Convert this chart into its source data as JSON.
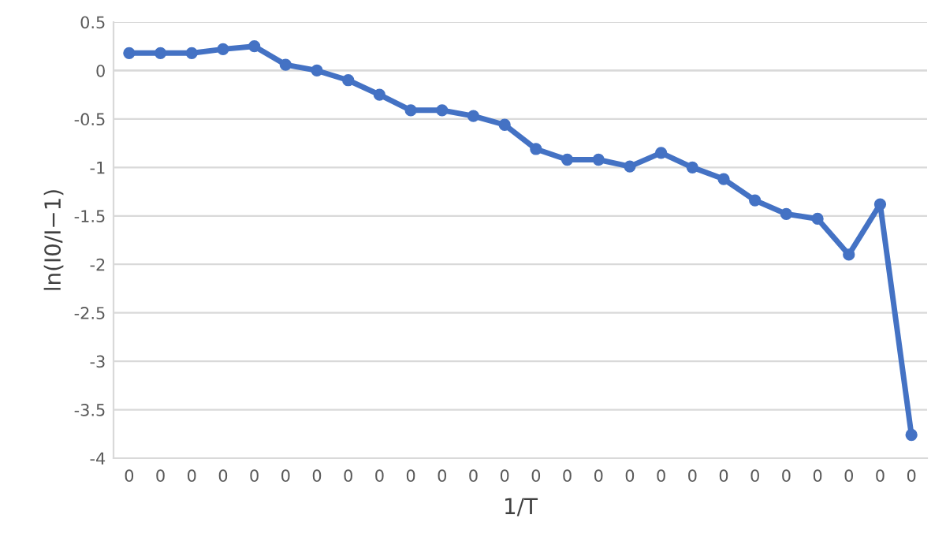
{
  "chart_data": {
    "type": "line",
    "xlabel": "1/T",
    "ylabel": "ln(I0/I−1)",
    "categories": [
      "0",
      "0",
      "0",
      "0",
      "0",
      "0",
      "0",
      "0",
      "0",
      "0",
      "0",
      "0",
      "0",
      "0",
      "0",
      "0",
      "0",
      "0",
      "0",
      "0",
      "0",
      "0",
      "0",
      "0",
      "0",
      "0"
    ],
    "series": [
      {
        "color": "#4472c4",
        "values": [
          0.18,
          0.18,
          0.18,
          0.22,
          0.25,
          0.06,
          0.0,
          -0.1,
          -0.25,
          -0.41,
          -0.41,
          -0.47,
          -0.56,
          -0.81,
          -0.92,
          -0.92,
          -0.99,
          -0.85,
          -1.0,
          -1.12,
          -1.34,
          -1.48,
          -1.53,
          -1.9,
          -1.38,
          -3.76
        ]
      }
    ],
    "ylim": [
      -4,
      0.5
    ],
    "yticks": [
      -4,
      -3.5,
      -3,
      -2.5,
      -2,
      -1.5,
      -1,
      -0.5,
      0,
      0.5
    ],
    "grid": "y",
    "marker": "circle",
    "line_style": "solid",
    "legend": false
  }
}
